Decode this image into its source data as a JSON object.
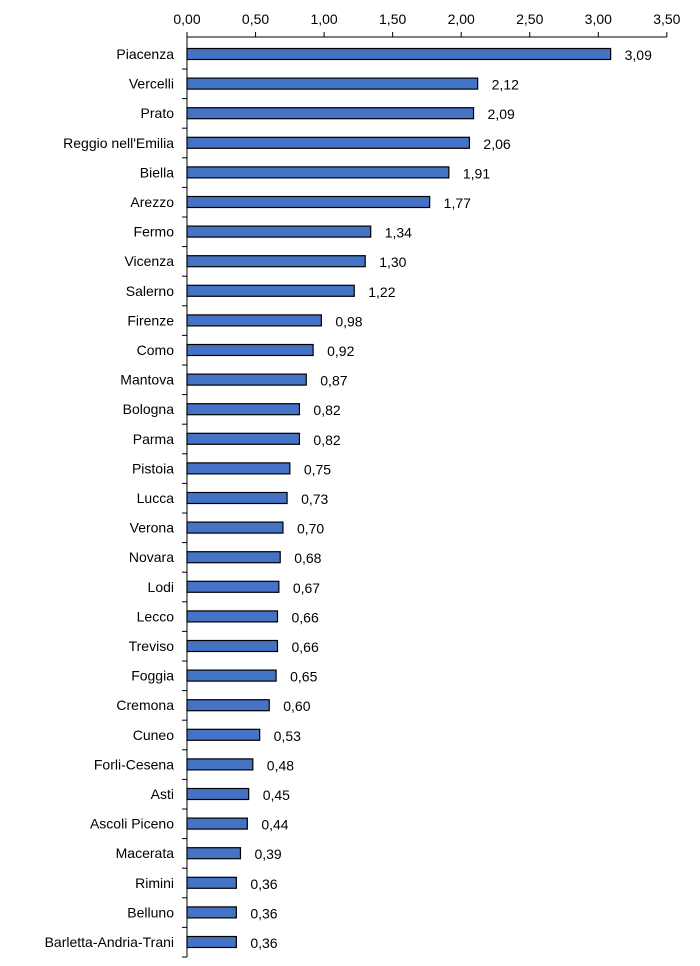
{
  "chart_data": {
    "type": "bar",
    "orientation": "horizontal",
    "title": "",
    "xlabel": "",
    "ylabel": "",
    "xlim": [
      0,
      3.5
    ],
    "x_ticks": [
      "0,00",
      "0,50",
      "1,00",
      "1,50",
      "2,00",
      "2,50",
      "3,00",
      "3,50"
    ],
    "x_axis_position": "top",
    "grid": false,
    "legend": "none",
    "bar_color": "#4472C4",
    "bar_edge_color": "#000000",
    "categories": [
      "Piacenza",
      "Vercelli",
      "Prato",
      "Reggio nell'Emilia",
      "Biella",
      "Arezzo",
      "Fermo",
      "Vicenza",
      "Salerno",
      "Firenze",
      "Como",
      "Mantova",
      "Bologna",
      "Parma",
      "Pistoia",
      "Lucca",
      "Verona",
      "Novara",
      "Lodi",
      "Lecco",
      "Treviso",
      "Foggia",
      "Cremona",
      "Cuneo",
      "Forli-Cesena",
      "Asti",
      "Ascoli Piceno",
      "Macerata",
      "Rimini",
      "Belluno",
      "Barletta-Andria-Trani"
    ],
    "values": [
      3.09,
      2.12,
      2.09,
      2.06,
      1.91,
      1.77,
      1.34,
      1.3,
      1.22,
      0.98,
      0.92,
      0.87,
      0.82,
      0.82,
      0.75,
      0.73,
      0.7,
      0.68,
      0.67,
      0.66,
      0.66,
      0.65,
      0.6,
      0.53,
      0.48,
      0.45,
      0.44,
      0.39,
      0.36,
      0.36,
      0.36
    ],
    "value_labels": [
      "3,09",
      "2,12",
      "2,09",
      "2,06",
      "1,91",
      "1,77",
      "1,34",
      "1,30",
      "1,22",
      "0,98",
      "0,92",
      "0,87",
      "0,82",
      "0,82",
      "0,75",
      "0,73",
      "0,70",
      "0,68",
      "0,67",
      "0,66",
      "0,66",
      "0,65",
      "0,60",
      "0,53",
      "0,48",
      "0,45",
      "0,44",
      "0,39",
      "0,36",
      "0,36",
      "0,36"
    ]
  }
}
